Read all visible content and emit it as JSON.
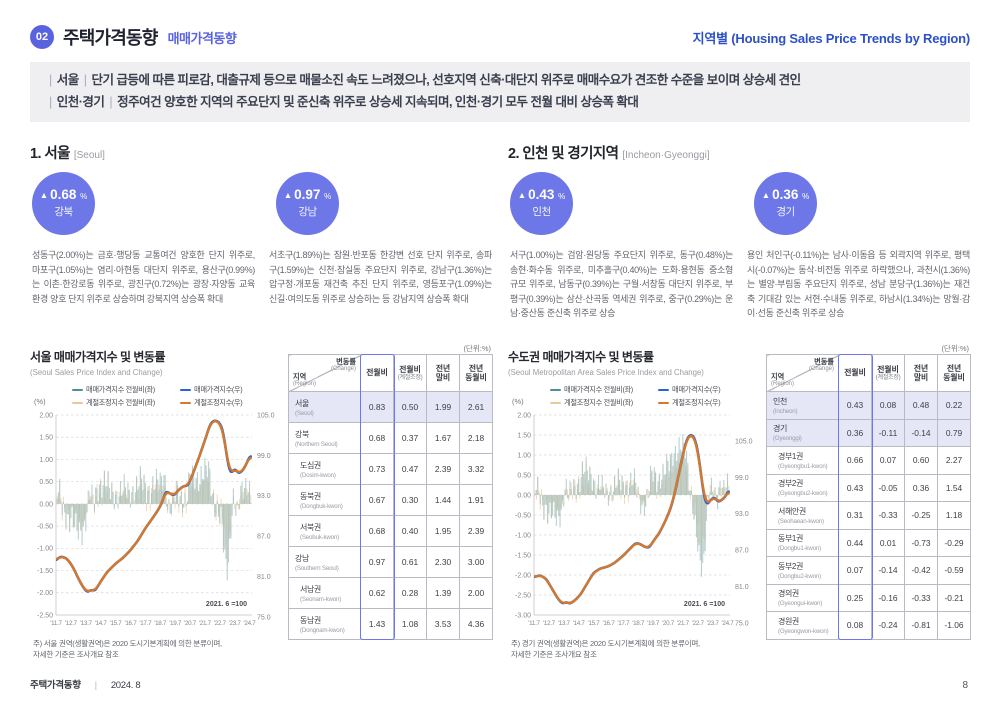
{
  "colors": {
    "accent": "#5a63de",
    "circle": "#6d77e8",
    "header_right_blue": "#2b50c8",
    "highlight_row": "#e6e7f6",
    "bar_teal": "#9cbcba",
    "bar_peach": "#f2cfa6",
    "line_blue": "#2a62d9",
    "line_orange": "#d4782b",
    "legend_teal": "#4e8f96"
  },
  "header": {
    "badge": "02",
    "title": "주택가격동향",
    "subtitle": "매매가격동향",
    "right": "지역별 (Housing Sales Price Trends by Region)"
  },
  "summary": {
    "lines": [
      {
        "tag": "서울",
        "text": "단기 급등에 따른 피로감, 대출규제 등으로 매물소진 속도 느려졌으나, 선호지역 신축·대단지 위주로 매매수요가 견조한 수준을 보이며 상승세 견인"
      },
      {
        "tag": "인천·경기",
        "text": "정주여건 양호한 지역의 주요단지 및 준신축 위주로 상승세 지속되며, 인천·경기 모두 전월 대비 상승폭 확대"
      }
    ]
  },
  "sections": [
    {
      "no": "1.",
      "title": "서울",
      "title_en": "[Seoul]",
      "stats": [
        {
          "value": "0.68",
          "unit": "%",
          "region": "강북"
        },
        {
          "value": "0.97",
          "unit": "%",
          "region": "강남"
        }
      ],
      "paragraphs": [
        "성동구(2.00%)는 금호·행당동 교통여건 양호한 단지 위주로, 마포구(1.05%)는 염리·아현동 대단지 위주로, 용산구(0.99%)는 이촌·한강로동 위주로, 광진구(0.72%)는 광장·자양동 교육환경 양호 단지 위주로 상승하며 강북지역 상승폭 확대",
        "서초구(1.89%)는 잠원·반포동 한강변 선호 단지 위주로, 송파구(1.59%)는 신천·잠실동 주요단지 위주로, 강남구(1.36%)는 압구정·개포동 재건축 추진 단지 위주로, 영등포구(1.09%)는 신길·여의도동 위주로 상승하는 등 강남지역 상승폭 확대"
      ],
      "table": {
        "unit": "(단위:%)",
        "corner": {
          "top_right": "변동률",
          "top_right_en": "(Change)",
          "bottom_left": "지역",
          "bottom_left_en": "(Region)"
        },
        "columns": [
          {
            "lines": [
              "전월비"
            ],
            "sub": ""
          },
          {
            "lines": [
              "전월비"
            ],
            "sub": "(계절조정)"
          },
          {
            "lines": [
              "전년",
              "말비"
            ],
            "sub": ""
          },
          {
            "lines": [
              "전년",
              "동월비"
            ],
            "sub": ""
          }
        ],
        "rows": [
          {
            "ko": "서울",
            "en": "(Seoul)",
            "hl": true,
            "indent": false,
            "values": [
              "0.83",
              "0.50",
              "1.99",
              "2.61"
            ]
          },
          {
            "ko": "강북",
            "en": "(Northern Seoul)",
            "hl": false,
            "indent": false,
            "values": [
              "0.68",
              "0.37",
              "1.67",
              "2.18"
            ]
          },
          {
            "ko": "도심권",
            "en": "(Dosim-kwon)",
            "hl": false,
            "indent": true,
            "values": [
              "0.73",
              "0.47",
              "2.39",
              "3.32"
            ]
          },
          {
            "ko": "동북권",
            "en": "(Dongbuk-kwon)",
            "hl": false,
            "indent": true,
            "values": [
              "0.67",
              "0.30",
              "1.44",
              "1.91"
            ]
          },
          {
            "ko": "서북권",
            "en": "(Seobuk-kwon)",
            "hl": false,
            "indent": true,
            "values": [
              "0.68",
              "0.40",
              "1.95",
              "2.39"
            ]
          },
          {
            "ko": "강남",
            "en": "(Southern Seoul)",
            "hl": false,
            "indent": false,
            "values": [
              "0.97",
              "0.61",
              "2.30",
              "3.00"
            ]
          },
          {
            "ko": "서남권",
            "en": "(Seonam-kwon)",
            "hl": false,
            "indent": true,
            "values": [
              "0.62",
              "0.28",
              "1.39",
              "2.00"
            ]
          },
          {
            "ko": "동남권",
            "en": "(Dongnam-kwon)",
            "hl": false,
            "indent": true,
            "values": [
              "1.43",
              "1.08",
              "3.53",
              "4.36"
            ]
          }
        ]
      },
      "note": "주) 서울 권역(생활권역)은 2020 도시기본계획에 의한 분류이며,\n     자세한 기준은 조사개요 참조"
    },
    {
      "no": "2.",
      "title": "인천 및 경기지역",
      "title_en": "[Incheon·Gyeonggi]",
      "stats": [
        {
          "value": "0.43",
          "unit": "%",
          "region": "인천"
        },
        {
          "value": "0.36",
          "unit": "%",
          "region": "경기"
        }
      ],
      "paragraphs": [
        "서구(1.00%)는 검암·원당동 주요단지 위주로, 동구(0.48%)는 송현·화수동 위주로, 미추홀구(0.40%)는 도화·용현동 중소형 규모 위주로, 남동구(0.39%)는 구월·서창동 대단지 위주로, 부평구(0.39%)는 삼산·산곡동 역세권 위주로, 중구(0.29%)는 운남·중산동 준신축 위주로 상승",
        "용인 처인구(-0.11%)는 남사·이동읍 등 외곽지역 위주로, 평택시(-0.07%)는 동삭·비전동 위주로 하락했으나, 과천시(1.36%)는 별양·부림동 주요단지 위주로, 성남 분당구(1.36%)는 재건축 기대감 있는 서현·수내동 위주로, 하남시(1.34%)는 망월·감이·선동 준신축 위주로 상승"
      ],
      "table": {
        "unit": "(단위:%)",
        "corner": {
          "top_right": "변동률",
          "top_right_en": "(Change)",
          "bottom_left": "지역",
          "bottom_left_en": "(Region)"
        },
        "columns": [
          {
            "lines": [
              "전월비"
            ],
            "sub": ""
          },
          {
            "lines": [
              "전월비"
            ],
            "sub": "(계절조정)"
          },
          {
            "lines": [
              "전년",
              "말비"
            ],
            "sub": ""
          },
          {
            "lines": [
              "전년",
              "동월비"
            ],
            "sub": ""
          }
        ],
        "rows": [
          {
            "ko": "인천",
            "en": "(Incheon)",
            "hl": true,
            "indent": false,
            "values": [
              "0.43",
              "0.08",
              "0.48",
              "0.22"
            ]
          },
          {
            "ko": "경기",
            "en": "(Gyeonggi)",
            "hl": true,
            "indent": false,
            "values": [
              "0.36",
              "-0.11",
              "-0.14",
              "0.79"
            ]
          },
          {
            "ko": "경부1권",
            "en": "(Gyeongbu1-kwon)",
            "hl": false,
            "indent": true,
            "values": [
              "0.66",
              "0.07",
              "0.60",
              "2.27"
            ]
          },
          {
            "ko": "경부2권",
            "en": "(Gyeongbu2-kwon)",
            "hl": false,
            "indent": true,
            "values": [
              "0.43",
              "-0.05",
              "0.36",
              "1.54"
            ]
          },
          {
            "ko": "서해안권",
            "en": "(Seohaean-kwon)",
            "hl": false,
            "indent": true,
            "values": [
              "0.31",
              "-0.33",
              "-0.25",
              "1.18"
            ]
          },
          {
            "ko": "동부1권",
            "en": "(Dongbu1-kwon)",
            "hl": false,
            "indent": true,
            "values": [
              "0.44",
              "0.01",
              "-0.73",
              "-0.29"
            ]
          },
          {
            "ko": "동부2권",
            "en": "(Dongbu2-kwon)",
            "hl": false,
            "indent": true,
            "values": [
              "0.07",
              "-0.14",
              "-0.42",
              "-0.59"
            ]
          },
          {
            "ko": "경의권",
            "en": "(Gyeongui-kwon)",
            "hl": false,
            "indent": true,
            "values": [
              "0.25",
              "-0.16",
              "-0.33",
              "-0.21"
            ]
          },
          {
            "ko": "경원권",
            "en": "(Gyeongwon-kwon)",
            "hl": false,
            "indent": true,
            "values": [
              "0.08",
              "-0.24",
              "-0.81",
              "-1.06"
            ]
          }
        ]
      },
      "note": "주) 경기 권역(생활권역)은 2020 도시기본계획에 의한 분류이며,\n     자세한 기준은 조사개요 참조"
    }
  ],
  "chart_data": [
    {
      "type": "line+bar",
      "title": "서울 매매가격지수 및 변동률",
      "subtitle": "(Seoul Sales Price Index and Change)",
      "pct_label": "(%)",
      "legend": [
        {
          "label": "매매가격지수 전월비(좌)",
          "color": "#4e8f96"
        },
        {
          "label": "매매가격지수(우)",
          "color": "#2a62d9"
        },
        {
          "label": "계절조정지수 전월비(좌)",
          "color": "#f0c49c"
        },
        {
          "label": "계절조정지수(우)",
          "color": "#d4782b"
        }
      ],
      "annotation": "2021. 6 =100",
      "left_axis": {
        "min": -2.5,
        "max": 2.0,
        "step": 0.5
      },
      "right_axis": {
        "labels": [
          "105.0",
          "99.0",
          "93.0",
          "87.0",
          "81.0",
          "75.0"
        ],
        "anchor75": -2.5,
        "anchor105": 2.0,
        "top_offset": 0,
        "bottom_offset": 2
      },
      "x_range": [
        2011.583,
        2024.75
      ],
      "x_labels": [
        "'11.7",
        "'12.7",
        "'13.7",
        "'14.7",
        "'15.7",
        "'16.7",
        "'17.7",
        "'18.7",
        "'19.7",
        "'20.7",
        "'21.7",
        "'22.7",
        "'23.7",
        "'24.7"
      ],
      "index_points": [
        [
          2011.58,
          83.2
        ],
        [
          2011.9,
          83.8
        ],
        [
          2012.3,
          83.5
        ],
        [
          2012.7,
          82.3
        ],
        [
          2013.1,
          80.4
        ],
        [
          2013.45,
          79.0
        ],
        [
          2013.7,
          78.4
        ],
        [
          2013.95,
          78.8
        ],
        [
          2014.2,
          78.6
        ],
        [
          2014.58,
          80.0
        ],
        [
          2015.0,
          81.4
        ],
        [
          2015.58,
          82.7
        ],
        [
          2016.1,
          83.6
        ],
        [
          2016.58,
          84.7
        ],
        [
          2017.1,
          86.2
        ],
        [
          2017.58,
          88.0
        ],
        [
          2018.0,
          89.3
        ],
        [
          2018.4,
          90.6
        ],
        [
          2018.7,
          91.8
        ],
        [
          2018.95,
          93.6
        ],
        [
          2019.2,
          93.3
        ],
        [
          2019.5,
          92.9
        ],
        [
          2019.8,
          93.7
        ],
        [
          2020.1,
          94.3
        ],
        [
          2020.45,
          94.4
        ],
        [
          2020.8,
          96.3
        ],
        [
          2021.2,
          98.7
        ],
        [
          2021.6,
          101.3
        ],
        [
          2021.95,
          103.7
        ],
        [
          2022.2,
          104.2
        ],
        [
          2022.5,
          104.0
        ],
        [
          2022.75,
          103.1
        ],
        [
          2022.95,
          100.6
        ],
        [
          2023.05,
          98.9
        ],
        [
          2023.2,
          96.9
        ],
        [
          2023.35,
          96.2
        ],
        [
          2023.6,
          97.0
        ],
        [
          2023.85,
          96.2
        ],
        [
          2024.1,
          96.6
        ],
        [
          2024.35,
          97.5
        ],
        [
          2024.58,
          98.8
        ]
      ]
    },
    {
      "type": "line+bar",
      "title": "수도권 매매가격지수 및 변동률",
      "subtitle": "(Seoul Metropolitan Area Sales Price Index and Change)",
      "pct_label": "(%)",
      "legend": [
        {
          "label": "매매가격지수 전월비(좌)",
          "color": "#4e8f96"
        },
        {
          "label": "매매가격지수(우)",
          "color": "#2a62d9"
        },
        {
          "label": "계절조정지수 전월비(좌)",
          "color": "#f0c49c"
        },
        {
          "label": "계절조정지수(우)",
          "color": "#d4782b"
        }
      ],
      "annotation": "2021. 6 =100",
      "left_axis": {
        "min": -3.0,
        "max": 2.0,
        "step": 0.5
      },
      "right_axis": {
        "labels": [
          "105.0",
          "99.0",
          "93.0",
          "87.0",
          "81.0",
          "75.0"
        ],
        "anchor75": -3.0,
        "anchor105": 1.45,
        "top_offset": 26,
        "bottom_offset": 8
      },
      "x_range": [
        2011.583,
        2024.75
      ],
      "x_labels": [
        "'11.7",
        "'12.7",
        "'13.7",
        "'14.7",
        "'15.7",
        "'16.7",
        "'17.7",
        "'18.7",
        "'19.7",
        "'20.7",
        "'21.7",
        "'22.7",
        "'23.7",
        "'24.7"
      ],
      "index_points": [
        [
          2011.58,
          81.4
        ],
        [
          2012.0,
          81.7
        ],
        [
          2012.4,
          81.1
        ],
        [
          2012.8,
          79.4
        ],
        [
          2013.2,
          77.7
        ],
        [
          2013.5,
          76.9
        ],
        [
          2013.75,
          77.2
        ],
        [
          2014.0,
          76.9
        ],
        [
          2014.3,
          77.4
        ],
        [
          2014.7,
          78.4
        ],
        [
          2015.1,
          80.1
        ],
        [
          2015.58,
          82.1
        ],
        [
          2016.0,
          82.8
        ],
        [
          2016.58,
          83.2
        ],
        [
          2017.0,
          83.8
        ],
        [
          2017.58,
          85.0
        ],
        [
          2018.0,
          86.1
        ],
        [
          2018.4,
          87.1
        ],
        [
          2018.7,
          87.0
        ],
        [
          2019.0,
          86.5
        ],
        [
          2019.3,
          86.3
        ],
        [
          2019.7,
          87.8
        ],
        [
          2020.0,
          88.8
        ],
        [
          2020.4,
          90.8
        ],
        [
          2020.8,
          93.2
        ],
        [
          2021.1,
          96.2
        ],
        [
          2021.5,
          101.0
        ],
        [
          2021.8,
          104.3
        ],
        [
          2022.0,
          105.3
        ],
        [
          2022.3,
          105.3
        ],
        [
          2022.55,
          103.3
        ],
        [
          2022.8,
          98.9
        ],
        [
          2023.0,
          94.9
        ],
        [
          2023.2,
          93.5
        ],
        [
          2023.45,
          94.4
        ],
        [
          2023.7,
          94.9
        ],
        [
          2023.95,
          94.0
        ],
        [
          2024.2,
          94.4
        ],
        [
          2024.45,
          94.9
        ],
        [
          2024.58,
          95.8
        ]
      ]
    }
  ],
  "footer": {
    "left": "주택가격동향",
    "date": "2024. 8",
    "page": "8"
  }
}
